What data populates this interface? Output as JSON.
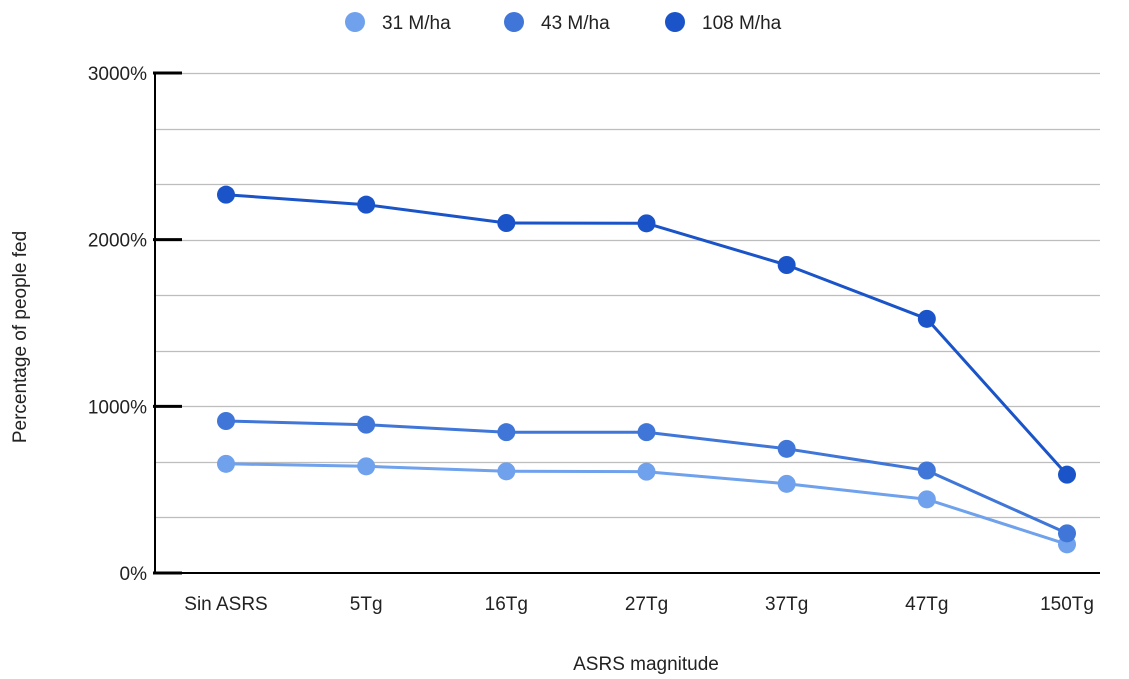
{
  "chart_data": {
    "type": "line",
    "categories": [
      "Sin ASRS",
      "5Tg",
      "16Tg",
      "27Tg",
      "37Tg",
      "47Tg",
      "150Tg"
    ],
    "series": [
      {
        "name": "31 M/ha",
        "color": "#6fa1ec",
        "values": [
          655,
          640,
          610,
          608,
          535,
          442,
          172
        ]
      },
      {
        "name": "43 M/ha",
        "color": "#3f76d8",
        "values": [
          912,
          890,
          845,
          845,
          745,
          615,
          238
        ]
      },
      {
        "name": "108 M/ha",
        "color": "#1a54c8",
        "values": [
          2270,
          2210,
          2100,
          2098,
          1848,
          1525,
          590
        ]
      }
    ],
    "xlabel": "ASRS magnitude",
    "ylabel": "Percentage of people fed",
    "ylim": [
      0,
      3000
    ],
    "yticks": [
      0,
      1000,
      2000,
      3000
    ],
    "ytick_labels": [
      "0%",
      "1000%",
      "2000%",
      "3000%"
    ],
    "minor_gridlines": true,
    "legend_position": "top-center",
    "colors": {
      "gridline": "#bdbdbd",
      "axis": "#000000",
      "text": "#222222"
    }
  }
}
